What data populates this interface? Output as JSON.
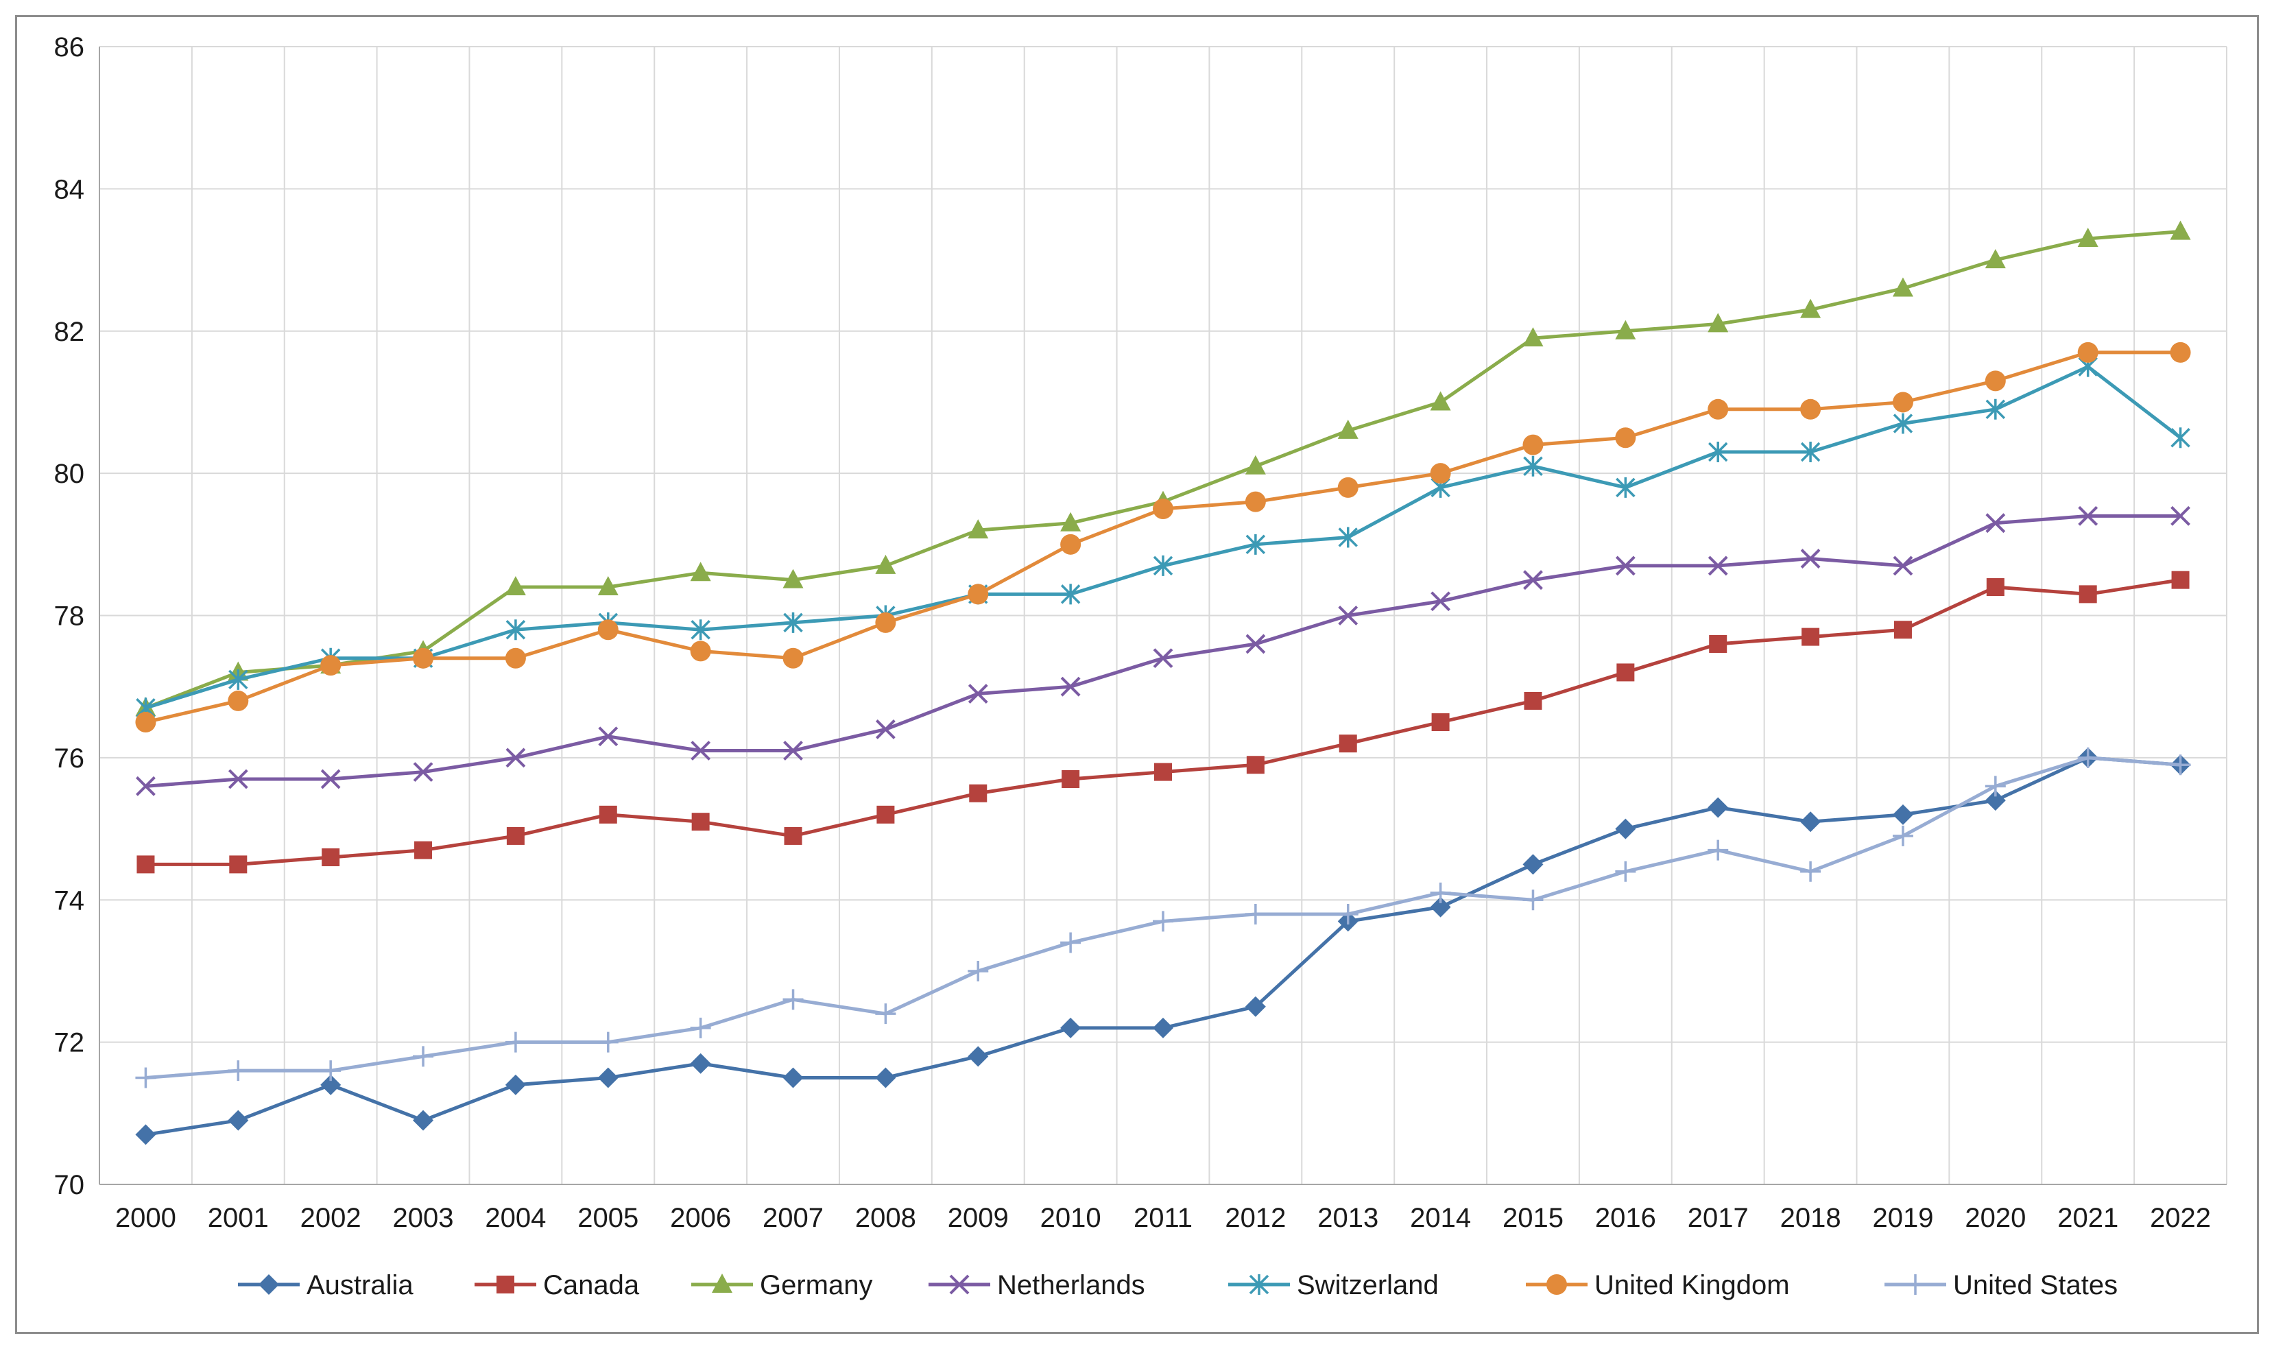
{
  "chart_data": {
    "type": "line",
    "title": "",
    "xlabel": "",
    "ylabel": "",
    "ylim": [
      70,
      86
    ],
    "y_ticks": [
      70,
      72,
      74,
      76,
      78,
      80,
      82,
      84,
      86
    ],
    "grid": true,
    "legend_position": "bottom",
    "categories": [
      "2000",
      "2001",
      "2002",
      "2003",
      "2004",
      "2005",
      "2006",
      "2007",
      "2008",
      "2009",
      "2010",
      "2011",
      "2012",
      "2013",
      "2014",
      "2015",
      "2016",
      "2017",
      "2018",
      "2019",
      "2020",
      "2021",
      "2022"
    ],
    "series": [
      {
        "name": "Australia",
        "color": "#4472a8",
        "marker": "diamond",
        "values": [
          70.7,
          70.9,
          71.4,
          70.9,
          71.4,
          71.5,
          71.7,
          71.5,
          71.5,
          71.8,
          72.2,
          72.2,
          72.5,
          73.7,
          73.9,
          74.5,
          75.0,
          75.3,
          75.1,
          75.2,
          75.4,
          76.0,
          75.9
        ]
      },
      {
        "name": "Canada",
        "color": "#b5423d",
        "marker": "square",
        "values": [
          74.5,
          74.5,
          74.6,
          74.7,
          74.9,
          75.2,
          75.1,
          74.9,
          75.2,
          75.5,
          75.7,
          75.8,
          75.9,
          76.2,
          76.5,
          76.8,
          77.2,
          77.6,
          77.7,
          77.8,
          78.4,
          78.3,
          78.5
        ]
      },
      {
        "name": "Germany",
        "color": "#8aac4b",
        "marker": "triangle",
        "values": [
          76.7,
          77.2,
          77.3,
          77.5,
          78.4,
          78.4,
          78.6,
          78.5,
          78.7,
          79.2,
          79.3,
          79.6,
          80.1,
          80.6,
          81.0,
          81.9,
          82.0,
          82.1,
          82.3,
          82.6,
          83.0,
          83.3,
          83.4
        ]
      },
      {
        "name": "Netherlands",
        "color": "#7b5ba3",
        "marker": "x",
        "values": [
          75.6,
          75.7,
          75.7,
          75.8,
          76.0,
          76.3,
          76.1,
          76.1,
          76.4,
          76.9,
          77.0,
          77.4,
          77.6,
          78.0,
          78.2,
          78.5,
          78.7,
          78.7,
          78.8,
          78.7,
          79.3,
          79.4,
          79.4
        ]
      },
      {
        "name": "Switzerland",
        "color": "#3c9ab5",
        "marker": "asterisk",
        "values": [
          76.7,
          77.1,
          77.4,
          77.4,
          77.8,
          77.9,
          77.8,
          77.9,
          78.0,
          78.3,
          78.3,
          78.7,
          79.0,
          79.1,
          79.8,
          80.1,
          79.8,
          80.3,
          80.3,
          80.7,
          80.9,
          81.5,
          80.5
        ]
      },
      {
        "name": "United Kingdom",
        "color": "#e28a3a",
        "marker": "circle",
        "values": [
          76.5,
          76.8,
          77.3,
          77.4,
          77.4,
          77.8,
          77.5,
          77.4,
          77.9,
          78.3,
          79.0,
          79.5,
          79.6,
          79.8,
          80.0,
          80.4,
          80.5,
          80.9,
          80.9,
          81.0,
          81.3,
          81.7,
          81.7
        ]
      },
      {
        "name": "United States",
        "color": "#97acd3",
        "marker": "plus",
        "values": [
          71.5,
          71.6,
          71.6,
          71.8,
          72.0,
          72.0,
          72.2,
          72.6,
          72.4,
          73.0,
          73.4,
          73.7,
          73.8,
          73.8,
          74.1,
          74.0,
          74.4,
          74.7,
          74.4,
          74.9,
          75.6,
          76.0,
          75.9
        ]
      }
    ]
  }
}
